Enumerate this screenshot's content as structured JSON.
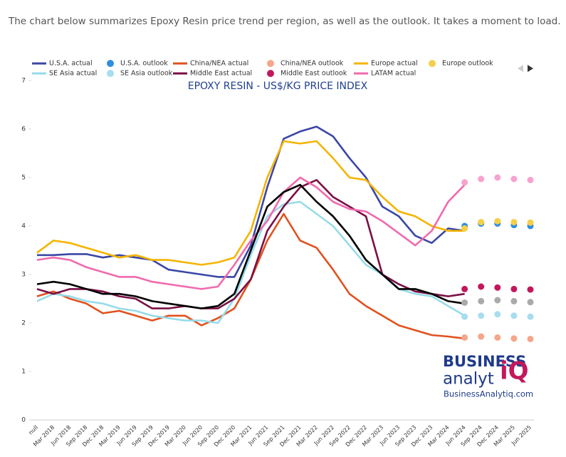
{
  "header": "The chart below summarizes Epoxy Resin price trend per region, as well as the outlook. It takes a moment to load.",
  "chart_data": {
    "type": "line",
    "title": "EPOXY RESIN - US$/KG PRICE INDEX",
    "categories": [
      "null",
      "Mar 2018",
      "Jun 2018",
      "Sep 2018",
      "Dec 2018",
      "Mar 2019",
      "Jun 2019",
      "Sep 2019",
      "Dec 2019",
      "Mar 2020",
      "Jun 2020",
      "Sep 2020",
      "Dec 2020",
      "Mar 2021",
      "Jun 2021",
      "Sep 2021",
      "Dec 2021",
      "Mar 2022",
      "Jun 2022",
      "Sep 2022",
      "Dec 2022",
      "Mar 2023",
      "Jun 2023",
      "Sep 2023",
      "Dec 2023",
      "Mar 2024",
      "Jun 2024",
      "Sep 2024",
      "Dec 2024",
      "Mar 2025",
      "Jun 2025"
    ],
    "ylim": [
      0,
      7
    ],
    "yticks": [
      0,
      1,
      2,
      3,
      4,
      5,
      6,
      7
    ],
    "grid": false,
    "series": [
      {
        "name": "U.S.A. actual",
        "color": "#3b47a6",
        "style": "line",
        "values": [
          3.4,
          3.4,
          3.42,
          3.42,
          3.35,
          3.4,
          3.35,
          3.3,
          3.1,
          3.05,
          3.0,
          2.95,
          2.95,
          3.6,
          4.8,
          5.8,
          5.95,
          6.05,
          5.85,
          5.4,
          5.0,
          4.4,
          4.2,
          3.8,
          3.65,
          3.95,
          3.9,
          null,
          null,
          null,
          null
        ]
      },
      {
        "name": "U.S.A. outlook",
        "color": "#2f8ee0",
        "style": "dots",
        "values": [
          null,
          null,
          null,
          null,
          null,
          null,
          null,
          null,
          null,
          null,
          null,
          null,
          null,
          null,
          null,
          null,
          null,
          null,
          null,
          null,
          null,
          null,
          null,
          null,
          null,
          null,
          4.0,
          4.05,
          4.05,
          4.02,
          4.0
        ]
      },
      {
        "name": "China/NEA actual",
        "color": "#e0521f",
        "style": "line",
        "values": [
          2.55,
          2.65,
          2.5,
          2.4,
          2.2,
          2.25,
          2.15,
          2.05,
          2.15,
          2.15,
          1.95,
          2.1,
          2.3,
          2.9,
          3.7,
          4.25,
          3.7,
          3.55,
          3.1,
          2.6,
          2.35,
          2.15,
          1.95,
          1.85,
          1.75,
          1.72,
          1.68,
          null,
          null,
          null,
          null
        ]
      },
      {
        "name": "China/NEA outlook",
        "color": "#f5a68b",
        "style": "dots",
        "values": [
          null,
          null,
          null,
          null,
          null,
          null,
          null,
          null,
          null,
          null,
          null,
          null,
          null,
          null,
          null,
          null,
          null,
          null,
          null,
          null,
          null,
          null,
          null,
          null,
          null,
          null,
          1.7,
          1.72,
          1.7,
          1.68,
          1.67
        ]
      },
      {
        "name": "Europe actual",
        "color": "#f5b400",
        "style": "line",
        "values": [
          3.45,
          3.7,
          3.65,
          3.55,
          3.45,
          3.35,
          3.4,
          3.3,
          3.3,
          3.25,
          3.2,
          3.25,
          3.35,
          3.9,
          5.0,
          5.75,
          5.7,
          5.75,
          5.4,
          5.0,
          4.95,
          4.6,
          4.3,
          4.2,
          4.0,
          3.9,
          3.9,
          null,
          null,
          null,
          null
        ]
      },
      {
        "name": "Europe outlook",
        "color": "#f5cf4a",
        "style": "dots",
        "values": [
          null,
          null,
          null,
          null,
          null,
          null,
          null,
          null,
          null,
          null,
          null,
          null,
          null,
          null,
          null,
          null,
          null,
          null,
          null,
          null,
          null,
          null,
          null,
          null,
          null,
          null,
          3.95,
          4.08,
          4.1,
          4.08,
          4.07
        ]
      },
      {
        "name": "SE Asia actual",
        "color": "#97dbe9",
        "style": "line",
        "values": [
          2.45,
          2.6,
          2.55,
          2.45,
          2.4,
          2.3,
          2.25,
          2.15,
          2.1,
          2.05,
          2.05,
          2.0,
          2.5,
          3.4,
          4.2,
          4.45,
          4.5,
          4.25,
          4.0,
          3.6,
          3.2,
          3.0,
          2.7,
          2.6,
          2.55,
          2.35,
          2.15,
          null,
          null,
          null,
          null
        ]
      },
      {
        "name": "SE Asia outlook",
        "color": "#a8dcef",
        "style": "dots",
        "values": [
          null,
          null,
          null,
          null,
          null,
          null,
          null,
          null,
          null,
          null,
          null,
          null,
          null,
          null,
          null,
          null,
          null,
          null,
          null,
          null,
          null,
          null,
          null,
          null,
          null,
          null,
          2.13,
          2.15,
          2.18,
          2.15,
          2.13
        ]
      },
      {
        "name": "Middle East actual",
        "color": "#7a1045",
        "style": "line",
        "values": [
          2.7,
          2.6,
          2.7,
          2.7,
          2.65,
          2.55,
          2.5,
          2.3,
          2.3,
          2.35,
          2.3,
          2.3,
          2.5,
          2.9,
          3.9,
          4.4,
          4.8,
          4.95,
          4.6,
          4.4,
          4.2,
          3.0,
          2.8,
          2.65,
          2.6,
          2.55,
          2.6,
          null,
          null,
          null,
          null
        ]
      },
      {
        "name": "Middle East outlook",
        "color": "#c2185b",
        "style": "dots",
        "values": [
          null,
          null,
          null,
          null,
          null,
          null,
          null,
          null,
          null,
          null,
          null,
          null,
          null,
          null,
          null,
          null,
          null,
          null,
          null,
          null,
          null,
          null,
          null,
          null,
          null,
          null,
          2.7,
          2.75,
          2.73,
          2.7,
          2.69
        ]
      },
      {
        "name": "LATAM actual",
        "color": "#f06aae",
        "style": "line",
        "values": [
          3.3,
          3.35,
          3.3,
          3.15,
          3.05,
          2.95,
          2.95,
          2.85,
          2.8,
          2.75,
          2.7,
          2.75,
          3.2,
          3.7,
          4.1,
          4.7,
          5.0,
          4.8,
          4.5,
          4.35,
          4.3,
          4.1,
          3.85,
          3.6,
          3.9,
          4.5,
          4.85,
          null,
          null,
          null,
          null
        ]
      },
      {
        "color": "#f7a3cf",
        "style": "dots",
        "values": [
          null,
          null,
          null,
          null,
          null,
          null,
          null,
          null,
          null,
          null,
          null,
          null,
          null,
          null,
          null,
          null,
          null,
          null,
          null,
          null,
          null,
          null,
          null,
          null,
          null,
          null,
          4.9,
          4.97,
          5.0,
          4.97,
          4.95
        ]
      },
      {
        "color": "#000000",
        "style": "line",
        "values": [
          2.8,
          2.85,
          2.8,
          2.7,
          2.6,
          2.6,
          2.55,
          2.45,
          2.4,
          2.35,
          2.3,
          2.35,
          2.6,
          3.5,
          4.4,
          4.7,
          4.85,
          4.5,
          4.2,
          3.8,
          3.3,
          3.0,
          2.7,
          2.7,
          2.6,
          2.45,
          2.4,
          null,
          null,
          null,
          null
        ]
      },
      {
        "color": "#aaaaaa",
        "style": "dots",
        "values": [
          null,
          null,
          null,
          null,
          null,
          null,
          null,
          null,
          null,
          null,
          null,
          null,
          null,
          null,
          null,
          null,
          null,
          null,
          null,
          null,
          null,
          null,
          null,
          null,
          null,
          null,
          2.42,
          2.45,
          2.47,
          2.45,
          2.43
        ]
      }
    ],
    "logo": {
      "line1": "BUSINESS",
      "line2": "analyt",
      "mark": "iQ",
      "url": "BusinessAnalytiq.com"
    }
  }
}
